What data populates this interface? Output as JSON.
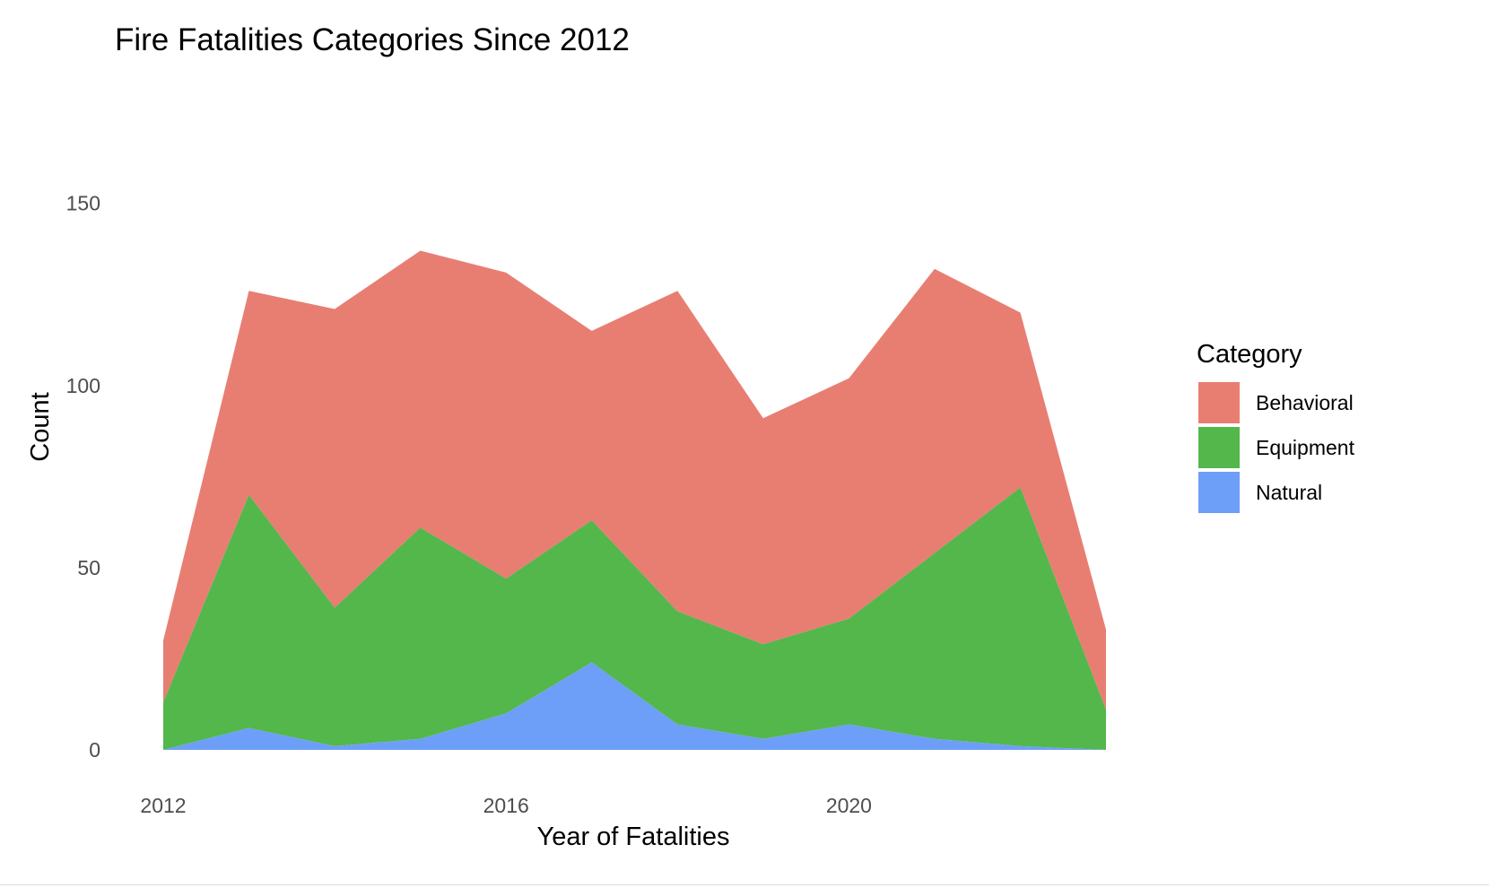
{
  "chart_data": {
    "type": "area",
    "stacked": true,
    "title": "Fire Fatalities Categories Since 2012",
    "xlabel": "Year of Fatalities",
    "ylabel": "Count",
    "xlim": [
      2012,
      2023
    ],
    "ylim": [
      0,
      177
    ],
    "x_ticks": [
      2012,
      2016,
      2020
    ],
    "y_ticks": [
      0,
      50,
      100,
      150
    ],
    "grid": false,
    "legend": {
      "title": "Category",
      "position": "right"
    },
    "x": [
      2012,
      2013,
      2014,
      2015,
      2016,
      2017,
      2018,
      2019,
      2020,
      2021,
      2022,
      2023
    ],
    "series": [
      {
        "name": "Behavioral",
        "color": "#e87e72",
        "values": [
          17,
          56,
          82,
          76,
          84,
          52,
          88,
          62,
          66,
          78,
          48,
          22
        ]
      },
      {
        "name": "Equipment",
        "color": "#53b74c",
        "values": [
          13,
          64,
          38,
          58,
          37,
          39,
          31,
          26,
          29,
          51,
          71,
          11
        ]
      },
      {
        "name": "Natural",
        "color": "#6d9ef8",
        "values": [
          0,
          6,
          1,
          3,
          10,
          24,
          7,
          3,
          7,
          3,
          1,
          0
        ]
      }
    ]
  }
}
